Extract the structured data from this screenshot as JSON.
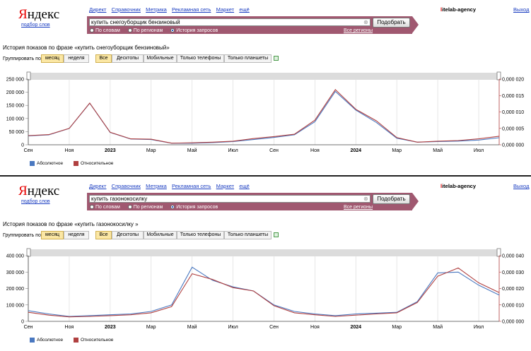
{
  "panels": [
    {
      "logo": {
        "text_first": "Я",
        "text_rest": "ндекс",
        "sub": "подбор слов"
      },
      "services": [
        "Директ",
        "Справочник",
        "Метрика",
        "Рекламная сеть",
        "Маркет",
        "ещё"
      ],
      "account": {
        "first": "l",
        "rest": "itelab-agency"
      },
      "exit": "Выход",
      "search": {
        "value": "купить снегоуборщик бензиновый",
        "button": "Подобрать",
        "clear": "⊗"
      },
      "radios": [
        {
          "label": "По словам",
          "selected": false
        },
        {
          "label": "По регионам",
          "selected": false
        },
        {
          "label": "История запросов",
          "selected": true
        }
      ],
      "regions": "Все регионы",
      "history_title": "История показов по фразе «купить снегоуборщик бензиновый»",
      "group_label": "Группировать по:",
      "group_options": [
        {
          "label": "месяц",
          "active": true
        },
        {
          "label": "неделя",
          "active": false
        }
      ],
      "device_options": [
        {
          "label": "Все",
          "active": true
        },
        {
          "label": "Десктопы",
          "active": false
        },
        {
          "label": "Мобильные",
          "active": false
        },
        {
          "label": "Только телефоны",
          "active": false
        },
        {
          "label": "Только планшеты",
          "active": false
        }
      ],
      "chart_data": {
        "type": "line",
        "x": [
          "2022-09",
          "2022-10",
          "2022-11",
          "2022-12",
          "2023-01",
          "2023-02",
          "2023-03",
          "2023-04",
          "2023-05",
          "2023-06",
          "2023-07",
          "2023-08",
          "2023-09",
          "2023-10",
          "2023-11",
          "2023-12",
          "2024-01",
          "2024-02",
          "2024-03",
          "2024-04",
          "2024-05",
          "2024-06",
          "2024-07",
          "2024-08"
        ],
        "x_ticks": [
          "Сен",
          "Ноя",
          "2023",
          "Мар",
          "Май",
          "Июл",
          "Сен",
          "Ноя",
          "2024",
          "Мар",
          "Май",
          "Июл"
        ],
        "left_axis": {
          "ticks": [
            "0",
            "50 000",
            "100 000",
            "150 000",
            "200 000",
            "250 000"
          ],
          "max": 250000
        },
        "right_axis": {
          "ticks": [
            "0,000 000",
            "0,000 005",
            "0,000 010",
            "0,000 015",
            "0,000 020"
          ],
          "max": 2e-05
        },
        "series": [
          {
            "name": "Абсолютное",
            "color": "#4a78c0",
            "axis": "left",
            "values": [
              34000,
              38000,
              62000,
              158000,
              47000,
              22000,
              20000,
              6000,
              6000,
              8000,
              12000,
              20000,
              28000,
              38000,
              88000,
              203000,
              132000,
              85000,
              25000,
              10000,
              12000,
              14000,
              18000,
              27000
            ]
          },
          {
            "name": "Относительное",
            "color": "#b04040",
            "axis": "right",
            "values": [
              2.8e-06,
              3.1e-06,
              5e-06,
              1.27e-05,
              3.8e-06,
              1.8e-06,
              1.7e-06,
              5e-07,
              6e-07,
              8e-07,
              1.1e-06,
              1.9e-06,
              2.5e-06,
              3.2e-06,
              7.5e-06,
              1.68e-05,
              1.08e-05,
              7.3e-06,
              2.2e-06,
              8e-07,
              1.1e-06,
              1.3e-06,
              1.8e-06,
              2.6e-06
            ]
          }
        ]
      }
    },
    {
      "logo": {
        "text_first": "Я",
        "text_rest": "ндекс",
        "sub": "подбор слов"
      },
      "services": [
        "Директ",
        "Справочник",
        "Метрика",
        "Рекламная сеть",
        "Маркет",
        "ещё"
      ],
      "account": {
        "first": "l",
        "rest": "itelab-agency"
      },
      "exit": "Выход",
      "search": {
        "value": "купить газонокосилку",
        "button": "Подобрать",
        "clear": "⊗"
      },
      "radios": [
        {
          "label": "По словам",
          "selected": false
        },
        {
          "label": "По регионам",
          "selected": false
        },
        {
          "label": "История запросов",
          "selected": true
        }
      ],
      "regions": "Все регионы",
      "history_title": "История показов по фразе «купить газонокосилку »",
      "group_label": "Группировать по:",
      "group_options": [
        {
          "label": "месяц",
          "active": true
        },
        {
          "label": "неделя",
          "active": false
        }
      ],
      "device_options": [
        {
          "label": "Все",
          "active": true
        },
        {
          "label": "Десктопы",
          "active": false
        },
        {
          "label": "Мобильные",
          "active": false
        },
        {
          "label": "Только телефоны",
          "active": false
        },
        {
          "label": "Только планшеты",
          "active": false
        }
      ],
      "chart_data": {
        "type": "line",
        "x": [
          "2022-09",
          "2022-10",
          "2022-11",
          "2022-12",
          "2023-01",
          "2023-02",
          "2023-03",
          "2023-04",
          "2023-05",
          "2023-06",
          "2023-07",
          "2023-08",
          "2023-09",
          "2023-10",
          "2023-11",
          "2023-12",
          "2024-01",
          "2024-02",
          "2024-03",
          "2024-04",
          "2024-05",
          "2024-06",
          "2024-07",
          "2024-08"
        ],
        "x_ticks": [
          "Сен",
          "Ноя",
          "2023",
          "Мар",
          "Май",
          "Июл",
          "Сен",
          "Ноя",
          "2024",
          "Мар",
          "Май",
          "Июл"
        ],
        "left_axis": {
          "ticks": [
            "0",
            "100 000",
            "200 000",
            "300 000",
            "400 000"
          ],
          "max": 400000
        },
        "right_axis": {
          "ticks": [
            "0,000 000",
            "0,000 010",
            "0,000 020",
            "0,000 030",
            "0,000 040"
          ],
          "max": 4e-05
        },
        "series": [
          {
            "name": "Абсолютное",
            "color": "#4a78c0",
            "axis": "left",
            "values": [
              65000,
              45000,
              30000,
              35000,
              40000,
              45000,
              60000,
              100000,
              330000,
              250000,
              210000,
              185000,
              100000,
              60000,
              45000,
              35000,
              45000,
              50000,
              55000,
              120000,
              295000,
              300000,
              220000,
              160000
            ]
          },
          {
            "name": "Относительное",
            "color": "#b04040",
            "axis": "right",
            "values": [
              5.5e-06,
              3.8e-06,
              2.7e-06,
              3e-06,
              3.5e-06,
              4e-06,
              5.2e-06,
              9e-06,
              2.9e-05,
              2.55e-05,
              2.05e-05,
              1.85e-05,
              9.5e-06,
              5.2e-06,
              4e-06,
              3e-06,
              3.8e-06,
              4.5e-06,
              5.2e-06,
              1.15e-05,
              2.75e-05,
              3.25e-05,
              2.35e-05,
              1.75e-05
            ]
          }
        ]
      }
    }
  ]
}
